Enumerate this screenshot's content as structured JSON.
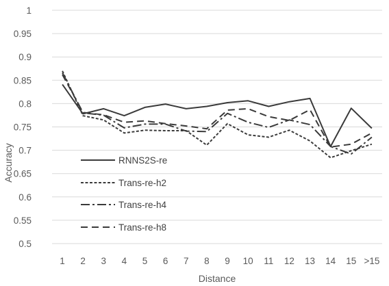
{
  "chart_data": {
    "type": "line",
    "title": "",
    "xlabel": "Distance",
    "ylabel": "Accuracy",
    "ylim": [
      0.5,
      1
    ],
    "yticks": [
      "0.5",
      "0.55",
      "0.6",
      "0.65",
      "0.7",
      "0.75",
      "0.8",
      "0.85",
      "0.9",
      "0.95",
      "1"
    ],
    "grid": true,
    "legend_position": "lower-left inside",
    "categories": [
      "1",
      "2",
      "3",
      "4",
      "5",
      "6",
      "7",
      "8",
      "9",
      "10",
      "11",
      "12",
      "13",
      "14",
      "15",
      ">15"
    ],
    "series": [
      {
        "name": "RNNS2S-re",
        "dash": "solid",
        "values": [
          0.841,
          0.778,
          0.789,
          0.774,
          0.792,
          0.799,
          0.789,
          0.794,
          0.802,
          0.806,
          0.794,
          0.804,
          0.811,
          0.708,
          0.79,
          0.747
        ]
      },
      {
        "name": "Trans-re-h2",
        "dash": "short-dash",
        "values": [
          0.87,
          0.774,
          0.765,
          0.737,
          0.743,
          0.742,
          0.742,
          0.711,
          0.757,
          0.733,
          0.728,
          0.743,
          0.72,
          0.684,
          0.699,
          0.713
        ]
      },
      {
        "name": "Trans-re-h4",
        "dash": "dash-dot",
        "values": [
          0.866,
          0.78,
          0.775,
          0.748,
          0.756,
          0.756,
          0.741,
          0.74,
          0.779,
          0.76,
          0.749,
          0.765,
          0.755,
          0.708,
          0.692,
          0.728
        ]
      },
      {
        "name": "Trans-re-h8",
        "dash": "long-dash",
        "values": [
          0.862,
          0.781,
          0.776,
          0.76,
          0.763,
          0.757,
          0.752,
          0.746,
          0.786,
          0.789,
          0.772,
          0.764,
          0.787,
          0.707,
          0.713,
          0.737
        ]
      }
    ]
  }
}
